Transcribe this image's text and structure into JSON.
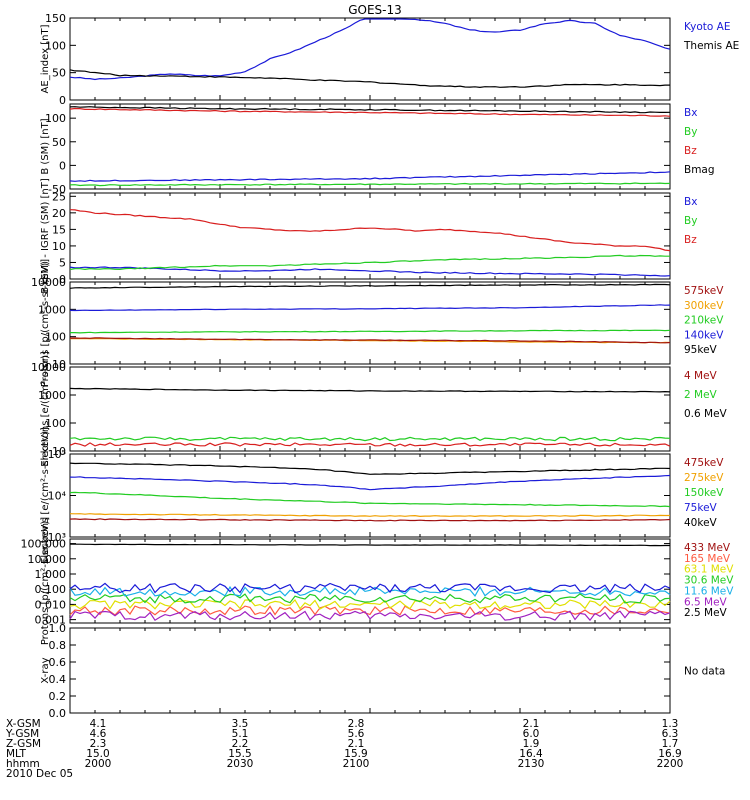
{
  "title": "GOES-13",
  "colors": {
    "black": "#000000",
    "blue": "#1a1ad8",
    "green": "#22cc22",
    "red": "#d81e1e",
    "orange": "#f0a000",
    "cyan": "#1ab0e8",
    "yellow": "#e0e000",
    "purple": "#a020c0",
    "darkred": "#a01010",
    "salmon": "#ff5a40"
  },
  "chart_data": [
    {
      "type": "line",
      "ylabel": "AE_index [nT]",
      "ylim": [
        0,
        150
      ],
      "yticks": [
        "0",
        "50",
        "100",
        "150"
      ],
      "series": [
        {
          "name": "Kyoto AE",
          "color": "blue",
          "x": [
            2000,
            2005,
            2010,
            2015,
            2020,
            2025,
            2030,
            2035,
            2040,
            2045,
            2050,
            2055,
            2100,
            2105,
            2110,
            2115,
            2120,
            2125,
            2130,
            2135,
            2140,
            2145,
            2150,
            2155,
            2200
          ],
          "y": [
            42,
            38,
            40,
            44,
            48,
            45,
            44,
            52,
            75,
            90,
            110,
            130,
            155,
            150,
            147,
            140,
            128,
            124,
            128,
            140,
            145,
            140,
            118,
            108,
            92
          ]
        },
        {
          "name": "Themis AE",
          "color": "black",
          "x": [
            2000,
            2005,
            2010,
            2020,
            2030,
            2040,
            2050,
            2100,
            2110,
            2120,
            2130,
            2140,
            2150,
            2200
          ],
          "y": [
            55,
            50,
            45,
            44,
            42,
            40,
            36,
            33,
            27,
            24,
            24,
            28,
            28,
            27
          ]
        }
      ]
    },
    {
      "type": "line",
      "ylabel": "B (SM) [nT]",
      "ylim": [
        -50,
        130
      ],
      "yticks": [
        "-50",
        "0",
        "50",
        "100"
      ],
      "series": [
        {
          "name": "Bx",
          "color": "blue",
          "x": [
            2000,
            2100,
            2200
          ],
          "y": [
            -33,
            -28,
            -14
          ]
        },
        {
          "name": "By",
          "color": "green",
          "x": [
            2000,
            2100,
            2200
          ],
          "y": [
            -42,
            -40,
            -38
          ]
        },
        {
          "name": "Bz",
          "color": "red",
          "x": [
            2000,
            2030,
            2100,
            2130,
            2200
          ],
          "y": [
            120,
            115,
            112,
            108,
            105
          ]
        },
        {
          "name": "Bmag",
          "color": "black",
          "x": [
            2000,
            2030,
            2100,
            2200
          ],
          "y": [
            124,
            120,
            118,
            112
          ]
        }
      ]
    },
    {
      "type": "line",
      "ylabel": "B (SM) - IGRF (SM) [nT]",
      "ylim": [
        0,
        26
      ],
      "yticks": [
        "0",
        "5",
        "10",
        "15",
        "20",
        "25"
      ],
      "series": [
        {
          "name": "Bx",
          "color": "blue",
          "x": [
            2000,
            2010,
            2020,
            2030,
            2040,
            2050,
            2100,
            2110,
            2120,
            2130,
            2140,
            2150,
            2200
          ],
          "y": [
            3.5,
            3.5,
            3,
            2.5,
            2.5,
            3,
            2.5,
            2,
            1.8,
            1.6,
            1.5,
            1.3,
            1.0
          ]
        },
        {
          "name": "By",
          "color": "green",
          "x": [
            2000,
            2010,
            2020,
            2030,
            2040,
            2050,
            2100,
            2110,
            2120,
            2130,
            2140,
            2150,
            2200
          ],
          "y": [
            3,
            3,
            3.5,
            4,
            4,
            4.5,
            5,
            5.5,
            6,
            6.2,
            6.5,
            7,
            7
          ]
        },
        {
          "name": "Bz",
          "color": "red",
          "x": [
            2000,
            2005,
            2010,
            2015,
            2020,
            2025,
            2030,
            2035,
            2040,
            2045,
            2050,
            2055,
            2100,
            2105,
            2110,
            2115,
            2120,
            2125,
            2130,
            2135,
            2140,
            2145,
            2150,
            2155,
            2200
          ],
          "y": [
            21,
            20,
            19.5,
            19,
            18.5,
            18,
            16.5,
            15.5,
            15,
            14.5,
            14.5,
            15,
            15.5,
            15,
            14.5,
            15,
            14.5,
            14,
            13,
            12,
            11,
            10.5,
            10,
            10,
            8.5
          ]
        }
      ]
    },
    {
      "type": "line",
      "ylabel": "Protons [p/(cm²-s-sr-keV)]",
      "scale": "log",
      "ylim": [
        10,
        10000
      ],
      "yticks": [
        "10",
        "100",
        "1000",
        "10000"
      ],
      "series": [
        {
          "name": "575keV",
          "color": "black",
          "x": [
            2000,
            2030,
            2100,
            2130,
            2200
          ],
          "y": [
            6000,
            6800,
            7200,
            7800,
            8000
          ]
        },
        {
          "name": "300keV",
          "color": "orange",
          "x": [
            2000,
            2030,
            2100,
            2130,
            2200
          ],
          "y": [
            85,
            78,
            72,
            65,
            60
          ]
        },
        {
          "name": "210keV",
          "color": "green",
          "x": [
            2000,
            2030,
            2100,
            2130,
            2200
          ],
          "y": [
            140,
            150,
            155,
            165,
            170
          ]
        },
        {
          "name": "140keV",
          "color": "blue",
          "x": [
            2000,
            2030,
            2100,
            2130,
            2200
          ],
          "y": [
            900,
            1000,
            1050,
            1150,
            1450
          ]
        },
        {
          "name": "95keV",
          "color": "darkred",
          "x": [
            2000,
            2030,
            2100,
            2130,
            2200
          ],
          "y": [
            90,
            80,
            75,
            70,
            60
          ]
        }
      ]
    },
    {
      "type": "line",
      "ylabel": "Electrons [e/(cm²-s-sr)]",
      "scale": "log",
      "ylim": [
        10,
        10000
      ],
      "yticks": [
        "10",
        "100",
        "1000",
        "10000"
      ],
      "series": [
        {
          "name": "4 MeV",
          "color": "red",
          "x": [
            2000,
            2030,
            2100,
            2130,
            2200
          ],
          "y": [
            17,
            17,
            17,
            17,
            17
          ]
        },
        {
          "name": "2 MeV",
          "color": "green",
          "x": [
            2000,
            2030,
            2100,
            2130,
            2200
          ],
          "y": [
            28,
            27,
            27,
            27,
            27
          ]
        },
        {
          "name": "0.6 MeV",
          "color": "black",
          "x": [
            2000,
            2030,
            2100,
            2130,
            2200
          ],
          "y": [
            1700,
            1500,
            1400,
            1350,
            1300
          ]
        }
      ]
    },
    {
      "type": "line",
      "ylabel": "Electrons [e/(cm²-s-sr-keV)]",
      "scale": "log",
      "ylim": [
        1000,
        100000
      ],
      "yticks": [
        "10³",
        "10⁴",
        "10⁵"
      ],
      "series": [
        {
          "name": "475keV",
          "color": "darkred",
          "x": [
            2000,
            2030,
            2100,
            2130,
            2200
          ],
          "y": [
            2700,
            2600,
            2500,
            2500,
            2600
          ]
        },
        {
          "name": "275keV",
          "color": "orange",
          "x": [
            2000,
            2030,
            2100,
            2130,
            2200
          ],
          "y": [
            3600,
            3400,
            3200,
            3200,
            3300
          ]
        },
        {
          "name": "150keV",
          "color": "green",
          "x": [
            2000,
            2030,
            2100,
            2130,
            2200
          ],
          "y": [
            12000,
            8500,
            6500,
            6000,
            5500
          ]
        },
        {
          "name": "75keV",
          "color": "blue",
          "x": [
            2000,
            2030,
            2050,
            2100,
            2115,
            2130,
            2200
          ],
          "y": [
            28000,
            22000,
            18000,
            14000,
            17000,
            22000,
            30000
          ]
        },
        {
          "name": "40keV",
          "color": "black",
          "x": [
            2000,
            2030,
            2050,
            2100,
            2115,
            2130,
            2200
          ],
          "y": [
            60000,
            52000,
            42000,
            32000,
            35000,
            38000,
            45000
          ]
        }
      ]
    },
    {
      "type": "line",
      "ylabel": "Protons [p/(cm²-s-sr-keV)]",
      "scale": "log",
      "ylim": [
        0.0006,
        200
      ],
      "yticks": [
        "0.001",
        "0.010",
        "0.100",
        "1.000",
        "10.000",
        "100.000"
      ],
      "series": [
        {
          "name": "433 MeV",
          "color": "black",
          "x": [
            2000,
            2030,
            2100,
            2130,
            2200
          ],
          "y": [
            90,
            85,
            80,
            80,
            75
          ]
        },
        {
          "name": "165 MeV",
          "color": "salmon",
          "x": [
            2000,
            2030,
            2100,
            2130,
            2200
          ],
          "y": [
            0.004,
            0.004,
            0.004,
            0.004,
            0.004
          ]
        },
        {
          "name": "63.1 MeV",
          "color": "yellow",
          "x": [
            2000,
            2030,
            2100,
            2130,
            2200
          ],
          "y": [
            0.01,
            0.01,
            0.01,
            0.01,
            0.01
          ]
        },
        {
          "name": "30.6 MeV",
          "color": "green",
          "x": [
            2000,
            2030,
            2100,
            2130,
            2200
          ],
          "y": [
            0.025,
            0.025,
            0.025,
            0.025,
            0.025
          ]
        },
        {
          "name": "11.6 MeV",
          "color": "cyan",
          "x": [
            2000,
            2030,
            2100,
            2130,
            2200
          ],
          "y": [
            0.07,
            0.07,
            0.07,
            0.07,
            0.07
          ]
        },
        {
          "name": "6.5 MeV",
          "color": "purple",
          "x": [
            2000,
            2030,
            2100,
            2130,
            2200
          ],
          "y": [
            0.0018,
            0.0018,
            0.0018,
            0.0018,
            0.0018
          ]
        },
        {
          "name": "2.5 MeV",
          "color": "blue",
          "x": [
            2000,
            2030,
            2100,
            2130,
            2200
          ],
          "y": [
            0.12,
            0.12,
            0.12,
            0.12,
            0.12
          ]
        }
      ]
    },
    {
      "type": "line",
      "ylabel": "X-ray",
      "ylim": [
        0,
        1.0
      ],
      "yticks": [
        "0.0",
        "0.2",
        "0.4",
        "0.6",
        "0.8",
        "1.0"
      ],
      "legend_text": "No data",
      "series": []
    }
  ],
  "legend_labels": [
    [
      "Kyoto AE",
      "Themis AE"
    ],
    [
      "Bx",
      "By",
      "Bz",
      "Bmag"
    ],
    [
      "Bx",
      "By",
      "Bz"
    ],
    [
      "575keV",
      "300keV",
      "210keV",
      "140keV",
      "95keV"
    ],
    [
      "4 MeV",
      "2 MeV",
      "0.6 MeV"
    ],
    [
      "475keV",
      "275keV",
      "150keV",
      "75keV",
      "40keV"
    ],
    [
      "433 MeV",
      "165 MeV",
      "63.1 MeV",
      "30.6 MeV",
      "11.6 MeV",
      "6.5 MeV",
      "2.5 MeV"
    ],
    [
      "No data"
    ]
  ],
  "footer": {
    "row_labels": [
      "X-GSM",
      "Y-GSM",
      "Z-GSM",
      "MLT",
      "hhmm",
      "2010 Dec 05"
    ],
    "columns": [
      [
        "4.1",
        "4.6",
        "2.3",
        "15.0",
        "2000"
      ],
      [
        "3.5",
        "5.1",
        "2.2",
        "15.5",
        "2030"
      ],
      [
        "2.8",
        "5.6",
        "2.1",
        "15.9",
        "2100"
      ],
      [
        "2.1",
        "6.0",
        "1.9",
        "16.4",
        "2130"
      ],
      [
        "1.3",
        "6.3",
        "1.7",
        "16.9",
        "2200"
      ]
    ]
  }
}
